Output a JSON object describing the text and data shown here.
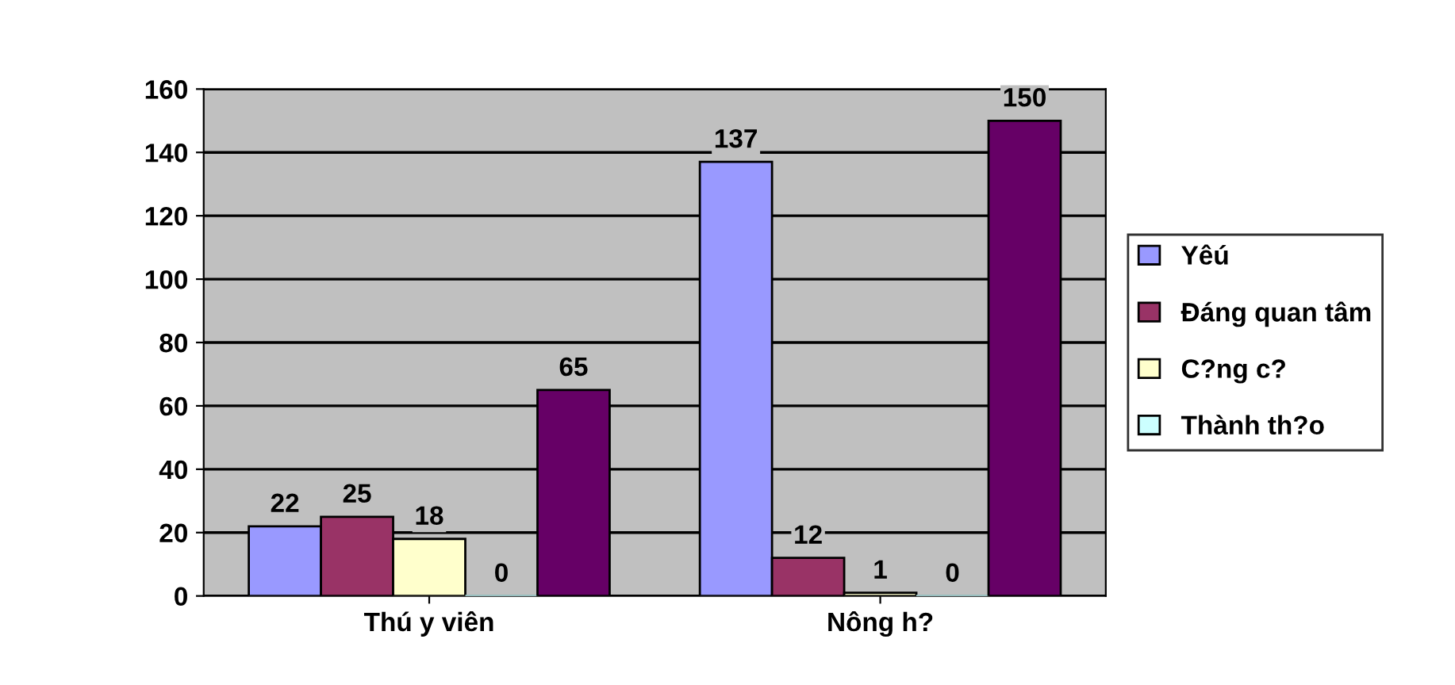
{
  "chart_data": {
    "type": "bar",
    "categories": [
      "Thú y viên",
      "Nông h?"
    ],
    "series": [
      {
        "name": "Yêú",
        "color": "#9999ff",
        "values": [
          22,
          137
        ]
      },
      {
        "name": "Đáng quan tâm",
        "color": "#993366",
        "values": [
          25,
          12
        ]
      },
      {
        "name": "C?ng c?",
        "color": "#ffffcc",
        "values": [
          18,
          1
        ]
      },
      {
        "name": "Thành th?o",
        "color": "#ccffff",
        "values": [
          0,
          0
        ]
      },
      {
        "color": "#660066",
        "values": [
          65,
          150
        ]
      }
    ],
    "ylim": [
      0,
      160
    ],
    "yticks": [
      0,
      20,
      40,
      60,
      80,
      100,
      120,
      140,
      160
    ],
    "grid": "y",
    "legend": "right",
    "data_labels": true
  }
}
